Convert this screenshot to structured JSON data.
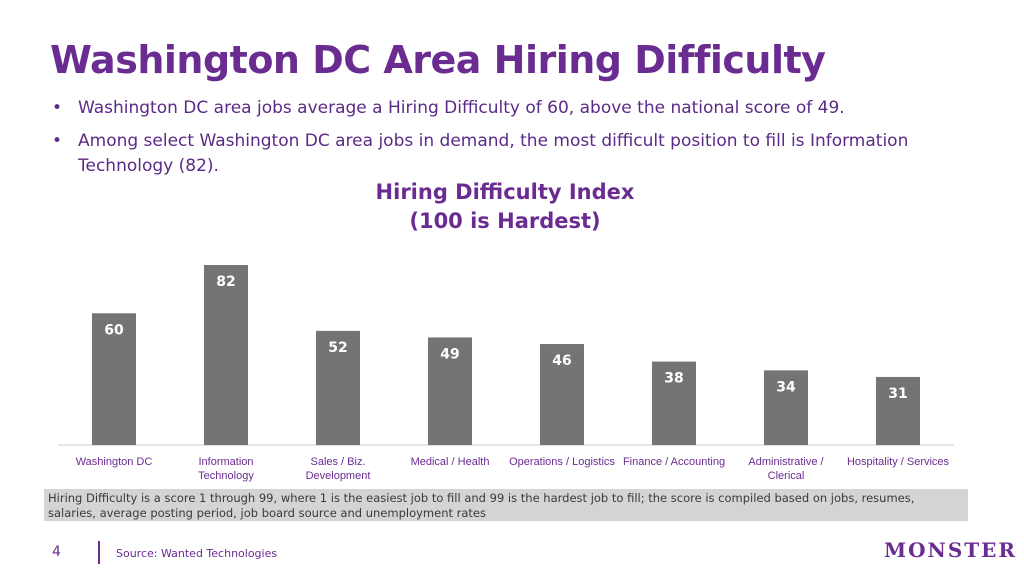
{
  "slide": {
    "title": "Washington DC Area Hiring Difficulty",
    "bullets": [
      "Washington DC area jobs average a Hiring Difficulty of 60, above the national score of 49.",
      "Among select Washington DC area jobs in demand, the most difficult position to fill is Information Technology (82)."
    ],
    "footnote": "Hiring Difficulty is a score 1 through 99, where 1 is the easiest job to fill and 99 is the hardest job to fill; the score is compiled based on jobs, resumes, salaries, average posting period, job board source and unemployment rates",
    "page_number": "4",
    "source": "Source: Wanted Technologies",
    "logo_text": "MONSTER"
  },
  "chart_data": {
    "type": "bar",
    "title_lines": [
      "Hiring Difficulty Index",
      "(100 is Hardest)"
    ],
    "categories": [
      [
        "Washington DC"
      ],
      [
        "Information",
        "Technology"
      ],
      [
        "Sales / Biz.",
        "Development"
      ],
      [
        "Medical / Health"
      ],
      [
        "Operations / Logistics"
      ],
      [
        "Finance / Accounting"
      ],
      [
        "Administrative /",
        "Clerical"
      ],
      [
        "Hospitality / Services"
      ]
    ],
    "values": [
      60,
      82,
      52,
      49,
      46,
      38,
      34,
      31
    ],
    "ylim": [
      0,
      100
    ],
    "grid": false,
    "legend": "none",
    "bar_color": "#747474",
    "label_color": "#ffffff",
    "axis_color": "#cccccc",
    "category_label_color": "#6a2c91"
  },
  "colors": {
    "brand_purple": "#6a2c91",
    "footnote_bg": "#d4d4d4"
  }
}
